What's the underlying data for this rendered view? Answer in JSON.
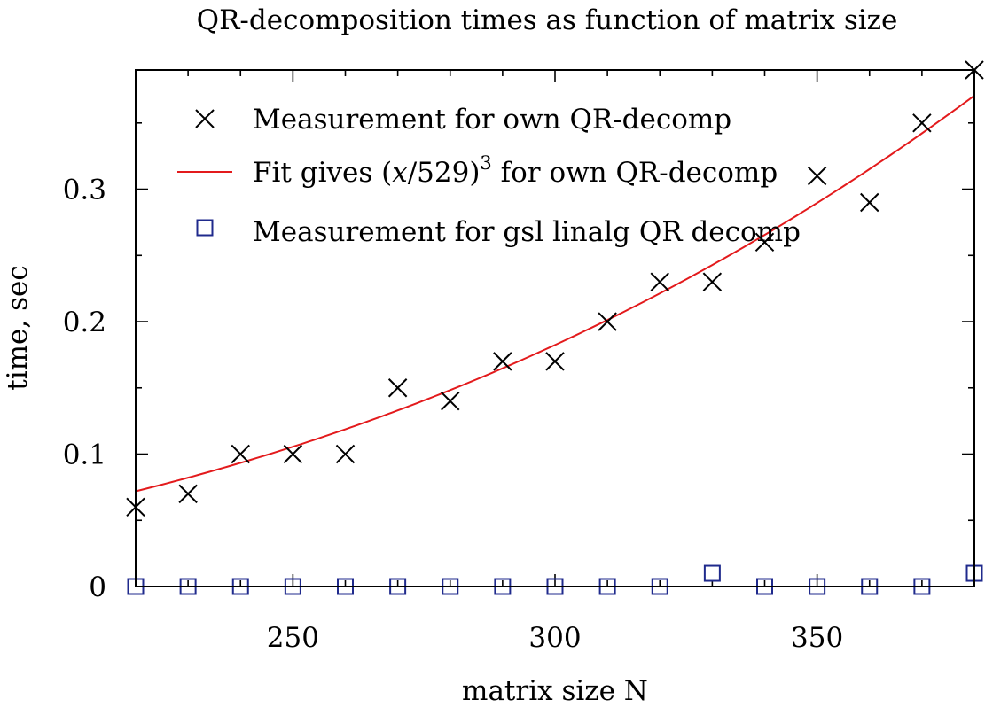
{
  "chart_data": {
    "type": "scatter",
    "title": "QR-decomposition times as function of matrix size",
    "xlabel": "matrix size N",
    "ylabel": "time, sec",
    "xlim": [
      220,
      380
    ],
    "ylim": [
      0,
      0.39
    ],
    "x_ticks": [
      250,
      300,
      350
    ],
    "x_tick_labels": [
      "250",
      "300",
      "350"
    ],
    "y_ticks": [
      0,
      0.1,
      0.2,
      0.3
    ],
    "y_tick_labels": [
      "0",
      "0.1",
      "0.2",
      "0.3"
    ],
    "grid": false,
    "legend_position": "top-right",
    "series": [
      {
        "name": "Measurement for own QR-decomp",
        "marker": "cross",
        "color": "#000000",
        "x": [
          220,
          230,
          240,
          250,
          260,
          270,
          280,
          290,
          300,
          310,
          320,
          330,
          340,
          350,
          360,
          370,
          380
        ],
        "y": [
          0.06,
          0.07,
          0.1,
          0.1,
          0.1,
          0.15,
          0.14,
          0.17,
          0.17,
          0.2,
          0.23,
          0.23,
          0.26,
          0.31,
          0.29,
          0.35,
          0.39
        ]
      },
      {
        "name": "Fit gives (x/529)³ for own QR-decomp",
        "legend_prefix": "Fit gives (",
        "legend_var": "x",
        "legend_mid": "/529)",
        "legend_sup": "3",
        "legend_suffix": " for own QR-decomp",
        "marker": "line",
        "color": "#e31a1c",
        "fit": "cubic",
        "fit_scale": 529
      },
      {
        "name": "Measurement for gsl_linalg_QR_decomp",
        "legend_text": "Measurement for gsl linalg QR decomp",
        "marker": "square",
        "color": "#1f2a8c",
        "x": [
          220,
          230,
          240,
          250,
          260,
          270,
          280,
          290,
          300,
          310,
          320,
          330,
          340,
          350,
          360,
          370,
          380
        ],
        "y": [
          0,
          0,
          0,
          0,
          0,
          0,
          0,
          0,
          0,
          0,
          0,
          0.01,
          0,
          0,
          0,
          0,
          0.01
        ]
      }
    ]
  }
}
